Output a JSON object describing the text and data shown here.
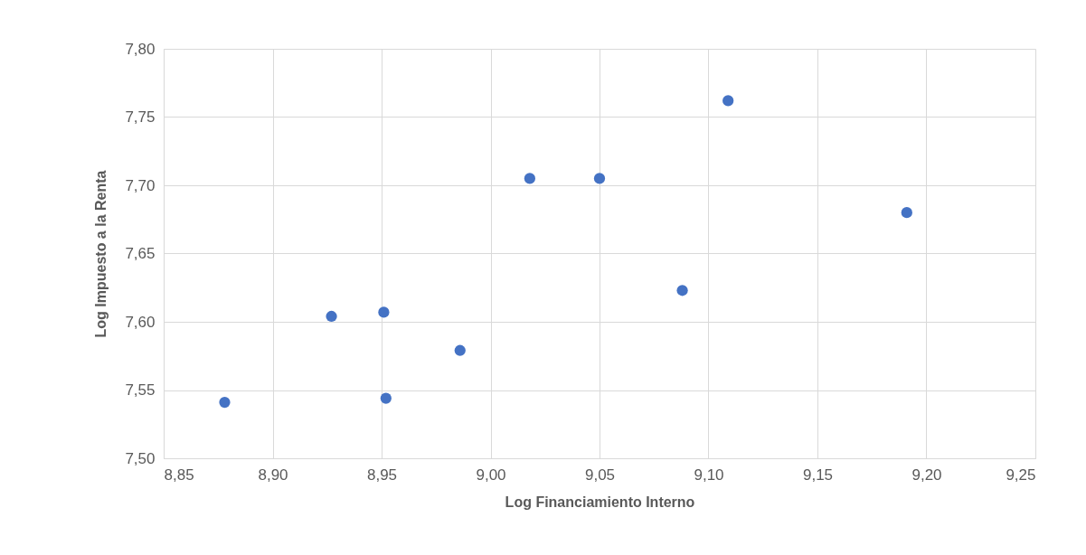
{
  "chart_data": {
    "type": "scatter",
    "xlabel": "Log Financiamiento Interno",
    "ylabel": "Log Impuesto a la Renta",
    "x": [
      8.878,
      8.927,
      8.951,
      8.952,
      8.986,
      9.018,
      9.05,
      9.088,
      9.109,
      9.191
    ],
    "values": [
      7.541,
      7.604,
      7.607,
      7.544,
      7.579,
      7.705,
      7.705,
      7.623,
      7.762,
      7.68
    ],
    "color": "#4472c4",
    "marker": "circle",
    "xlim": [
      8.85,
      9.25
    ],
    "xticks": [
      {
        "value": 8.85,
        "label": "8,85"
      },
      {
        "value": 8.9,
        "label": "8,90"
      },
      {
        "value": 8.95,
        "label": "8,95"
      },
      {
        "value": 9.0,
        "label": "9,00"
      },
      {
        "value": 9.05,
        "label": "9,05"
      },
      {
        "value": 9.1,
        "label": "9,10"
      },
      {
        "value": 9.15,
        "label": "9,15"
      },
      {
        "value": 9.2,
        "label": "9,20"
      },
      {
        "value": 9.25,
        "label": "9,25"
      }
    ],
    "ylim": [
      7.5,
      7.8
    ],
    "yticks": [
      {
        "value": 7.5,
        "label": "7,50"
      },
      {
        "value": 7.55,
        "label": "7,55"
      },
      {
        "value": 7.6,
        "label": "7,60"
      },
      {
        "value": 7.65,
        "label": "7,65"
      },
      {
        "value": 7.7,
        "label": "7,70"
      },
      {
        "value": 7.75,
        "label": "7,75"
      },
      {
        "value": 7.8,
        "label": "7,80"
      }
    ],
    "grid": true
  }
}
